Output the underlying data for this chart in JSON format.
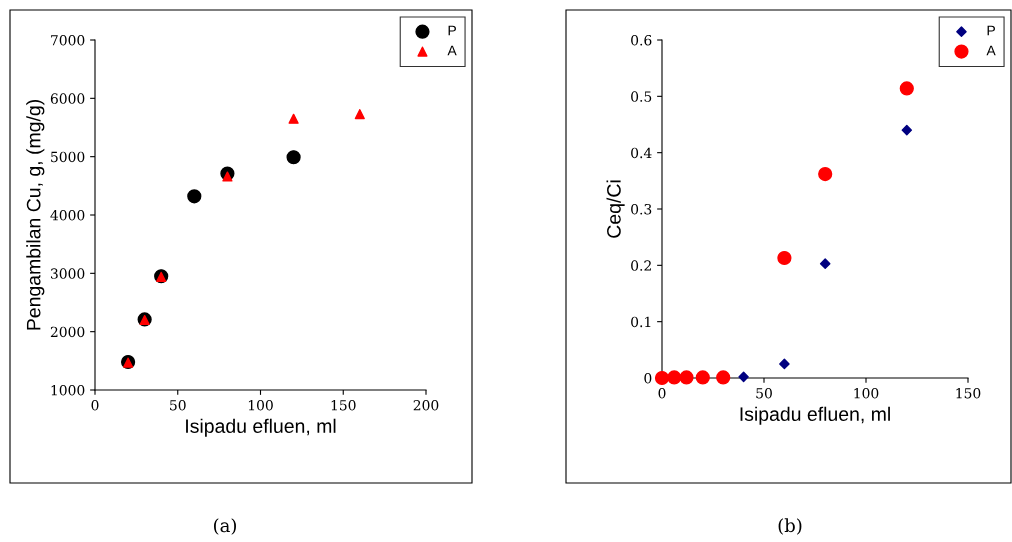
{
  "chart_data": [
    {
      "type": "scatter",
      "xlabel": "Isipadu efluen, ml",
      "ylabel": "Pengambilan Cu, g, (mg/g)",
      "xlim": [
        0,
        200
      ],
      "xticks": [
        0,
        50,
        100,
        150,
        200
      ],
      "ylim": [
        1000,
        7000
      ],
      "yticks": [
        1000,
        2000,
        3000,
        4000,
        5000,
        6000,
        7000
      ],
      "legend": "top right",
      "annotations": [
        "(a)"
      ],
      "series": [
        {
          "name": "P",
          "color": "#000000",
          "marker": "circle",
          "x": [
            20,
            30,
            40,
            60,
            80,
            120
          ],
          "values": [
            1480,
            2210,
            2950,
            4320,
            4710,
            4990
          ]
        },
        {
          "name": "A",
          "color": "#ff0000",
          "marker": "triangle",
          "x": [
            20,
            30,
            40,
            80,
            120,
            160
          ],
          "values": [
            1470,
            2200,
            2940,
            4660,
            5650,
            5730
          ]
        }
      ]
    },
    {
      "type": "scatter",
      "xlabel": "Isipadu efluen, ml",
      "ylabel": "Ceq/Ci",
      "xlim": [
        0,
        150
      ],
      "xticks": [
        0,
        50,
        100,
        150
      ],
      "ylim": [
        0,
        0.6
      ],
      "yticks": [
        0,
        0.1,
        0.2,
        0.3,
        0.4,
        0.5,
        0.6
      ],
      "legend": "top right",
      "annotations": [
        "(b)"
      ],
      "series": [
        {
          "name": "P",
          "color": "#000080",
          "marker": "diamond",
          "x": [
            40,
            60,
            80,
            120
          ],
          "values": [
            0.002,
            0.025,
            0.203,
            0.44
          ]
        },
        {
          "name": "A",
          "color": "#ff0000",
          "marker": "circle",
          "x": [
            0,
            6,
            12,
            20,
            30,
            60,
            80,
            120
          ],
          "values": [
            0,
            0.001,
            0.001,
            0.001,
            0.001,
            0.213,
            0.362,
            0.514
          ]
        }
      ]
    }
  ]
}
